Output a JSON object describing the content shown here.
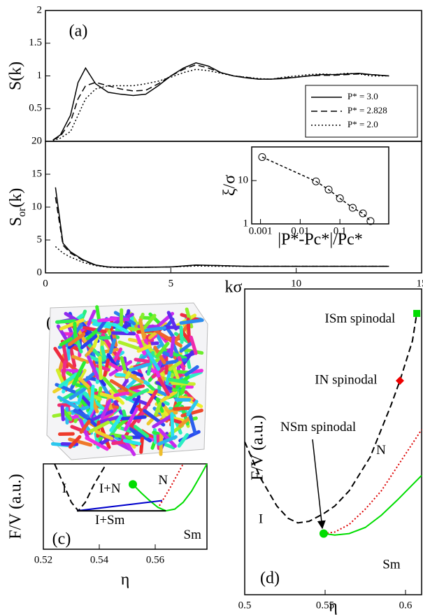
{
  "chart_data": [
    {
      "type": "line",
      "label": "(a)",
      "ylabel": "S(k)",
      "legend": "lower right",
      "xlim": [
        0,
        15
      ],
      "ylim": [
        0,
        2
      ],
      "yticks": [
        0.5,
        1,
        1.5,
        2
      ],
      "x": [
        0.3,
        0.6,
        1,
        1.3,
        1.6,
        2,
        2.5,
        3,
        3.5,
        4,
        4.5,
        5,
        5.5,
        6,
        6.5,
        7,
        7.5,
        8,
        8.5,
        9,
        9.5,
        10,
        10.5,
        11,
        11.5,
        12,
        12.5,
        13,
        13.7
      ],
      "series": [
        {
          "name": "P* = 3.0",
          "color": "#000000",
          "style": "solid",
          "values": [
            0.02,
            0.1,
            0.4,
            0.9,
            1.12,
            0.88,
            0.75,
            0.72,
            0.7,
            0.72,
            0.85,
            1.0,
            1.12,
            1.2,
            1.15,
            1.05,
            1.0,
            0.97,
            0.95,
            0.95,
            0.96,
            0.98,
            1.0,
            1.02,
            1.02,
            1.03,
            1.04,
            1.02,
            1.0
          ]
        },
        {
          "name": "P* = 2.828",
          "color": "#000000",
          "style": "dashed",
          "values": [
            0.02,
            0.08,
            0.3,
            0.65,
            0.85,
            0.9,
            0.85,
            0.8,
            0.77,
            0.78,
            0.88,
            1.0,
            1.1,
            1.17,
            1.12,
            1.05,
            1.0,
            0.98,
            0.95,
            0.95,
            0.97,
            0.98,
            1.0,
            1.01,
            1.01,
            1.02,
            1.03,
            1.02,
            1.0
          ]
        },
        {
          "name": "P* = 2.0",
          "color": "#000000",
          "style": "dotted",
          "values": [
            0.01,
            0.05,
            0.15,
            0.4,
            0.65,
            0.8,
            0.85,
            0.85,
            0.85,
            0.88,
            0.92,
            0.98,
            1.05,
            1.1,
            1.08,
            1.04,
            1.0,
            0.98,
            0.96,
            0.95,
            0.98,
            1.0,
            1.02,
            1.03,
            1.02,
            1.04,
            1.03,
            1.0,
            1.0
          ]
        }
      ]
    },
    {
      "type": "line",
      "ylabel": [
        "S",
        "or",
        "(k)"
      ],
      "xlabel": "kσ",
      "xlim": [
        0,
        15
      ],
      "xticks": [
        0,
        5,
        10,
        15
      ],
      "ylim": [
        0,
        20
      ],
      "yticks": [
        0,
        5,
        10,
        15,
        20
      ],
      "x": [
        0.4,
        0.7,
        1,
        1.5,
        2,
        2.5,
        3,
        4,
        5,
        6,
        7,
        8,
        9,
        10,
        11,
        12,
        13,
        13.7
      ],
      "series": [
        {
          "color": "#000000",
          "style": "solid",
          "values": [
            13,
            4.5,
            3.2,
            2,
            1.2,
            0.9,
            0.85,
            0.85,
            0.9,
            1.2,
            1.1,
            1.0,
            1.0,
            1.0,
            1.0,
            1.0,
            1.0,
            1.0
          ]
        },
        {
          "color": "#000000",
          "style": "dashed",
          "values": [
            11.5,
            4.2,
            3.0,
            1.9,
            1.15,
            0.9,
            0.85,
            0.85,
            0.9,
            1.15,
            1.1,
            1.0,
            1.0,
            1.0,
            1.0,
            1.0,
            1.0,
            1.0
          ]
        },
        {
          "color": "#000000",
          "style": "dotted",
          "values": [
            4,
            3,
            2.4,
            1.6,
            1.1,
            0.85,
            0.8,
            0.85,
            0.9,
            1.05,
            1.0,
            1.0,
            1.0,
            1.0,
            1.0,
            1.0,
            1.0,
            1.0
          ]
        }
      ]
    },
    {
      "type": "scatter",
      "xlabel": "|P*-Pc*|/Pc*",
      "ylabel": "ξ/σ",
      "xscale": "log",
      "yscale": "log",
      "fit": true,
      "xlim": [
        0.0006,
        1.7
      ],
      "ylim": [
        1,
        60
      ],
      "xticks": [
        0.001,
        0.01,
        0.1
      ],
      "yticks": [
        1,
        10
      ],
      "series": [
        {
          "color": "#000000",
          "x": [
            0.0011,
            0.025,
            0.052,
            0.1,
            0.21,
            0.38,
            0.59
          ],
          "values": [
            35,
            9.6,
            6.2,
            3.9,
            2.35,
            1.75,
            1.16
          ]
        }
      ]
    },
    {
      "type": "image",
      "label": "(b)"
    },
    {
      "type": "line",
      "label": "(c)",
      "xlabel": "η",
      "ylabel": "F/V (a.u.)",
      "xlim": [
        0.52,
        0.5785
      ],
      "ylim": [
        0,
        1
      ],
      "xticks": [
        0.52,
        0.54,
        0.56
      ],
      "series": [
        {
          "color": "#000000",
          "style": "dashed",
          "x": [
            0.524,
            0.527,
            0.53,
            0.5325,
            0.535,
            0.538,
            0.5425
          ],
          "values": [
            1,
            0.78,
            0.55,
            0.45,
            0.55,
            0.75,
            1
          ]
        },
        {
          "color": "#00dd00",
          "style": "solid",
          "x": [
            0.552,
            0.555,
            0.558,
            0.561,
            0.5638,
            0.567,
            0.57,
            0.573,
            0.5765,
            0.5785
          ],
          "values": [
            0.76,
            0.66,
            0.57,
            0.49,
            0.45,
            0.47,
            0.55,
            0.68,
            0.88,
            1
          ]
        },
        {
          "color": "#dd0000",
          "style": "dotted",
          "x": [
            0.5615,
            0.565,
            0.5675,
            0.57
          ],
          "values": [
            0.51,
            0.7,
            0.85,
            1
          ]
        },
        {
          "color": "#0000cc",
          "style": "solid",
          "x": [
            0.532,
            0.5625
          ],
          "values": [
            0.45,
            0.57
          ]
        },
        {
          "color": "#000000",
          "style": "solid",
          "x": [
            0.532,
            0.5638
          ],
          "values": [
            0.45,
            0.45
          ]
        }
      ],
      "markers": [
        {
          "x": 0.552,
          "y": 0.76,
          "color": "#00dd00",
          "shape": "circle"
        }
      ],
      "annotations": [
        {
          "text": "I",
          "x": 0.5275,
          "y": 0.7
        },
        {
          "text": "I+N",
          "x": 0.5438,
          "y": 0.7
        },
        {
          "text": "N",
          "x": 0.5628,
          "y": 0.8
        },
        {
          "text": "I+Sm",
          "x": 0.5438,
          "y": 0.33
        },
        {
          "text": "Sm",
          "x": 0.5733,
          "y": 0.16
        }
      ]
    },
    {
      "type": "line",
      "label": "(d)",
      "xlabel": "η",
      "ylabel": "F/V (a.u.)",
      "xlim": [
        0.5,
        0.61
      ],
      "ylim": [
        0,
        1
      ],
      "xticks": [
        0.5,
        0.55,
        0.6
      ],
      "series": [
        {
          "color": "#000000",
          "style": "dashed",
          "x": [
            0.5,
            0.51,
            0.52,
            0.527,
            0.533,
            0.54,
            0.549,
            0.556,
            0.565,
            0.578,
            0.591,
            0.5965,
            0.6043,
            0.607
          ],
          "values": [
            0.5,
            0.38,
            0.29,
            0.25,
            0.235,
            0.24,
            0.265,
            0.29,
            0.34,
            0.45,
            0.62,
            0.7,
            0.83,
            0.92
          ]
        },
        {
          "color": "#00dd00",
          "style": "solid",
          "x": [
            0.5491,
            0.556,
            0.565,
            0.575,
            0.585,
            0.595,
            0.61
          ],
          "values": [
            0.2,
            0.195,
            0.2,
            0.22,
            0.26,
            0.31,
            0.39
          ]
        },
        {
          "color": "#dd0000",
          "style": "dotted",
          "x": [
            0.5491,
            0.556,
            0.565,
            0.575,
            0.585,
            0.595,
            0.61
          ],
          "values": [
            0.2,
            0.205,
            0.23,
            0.28,
            0.34,
            0.42,
            0.54
          ]
        }
      ],
      "markers": [
        {
          "x": 0.5491,
          "y": 0.2,
          "color": "#00dd00",
          "shape": "circle"
        },
        {
          "x": 0.5965,
          "y": 0.7,
          "color": "#ee0000",
          "shape": "diamond"
        },
        {
          "x": 0.607,
          "y": 0.92,
          "color": "#00dd00",
          "shape": "square"
        }
      ],
      "annotations": [
        {
          "text": "ISm spinodal",
          "x": 0.5717,
          "y": 0.9
        },
        {
          "text": "IN spinodal",
          "x": 0.563,
          "y": 0.7
        },
        {
          "text": "NSm spinodal",
          "x": 0.5457,
          "y": 0.545
        },
        {
          "text": "N",
          "x": 0.5848,
          "y": 0.47
        },
        {
          "text": "I",
          "x": 0.51,
          "y": 0.245
        },
        {
          "text": "Sm",
          "x": 0.5913,
          "y": 0.096
        }
      ]
    }
  ]
}
